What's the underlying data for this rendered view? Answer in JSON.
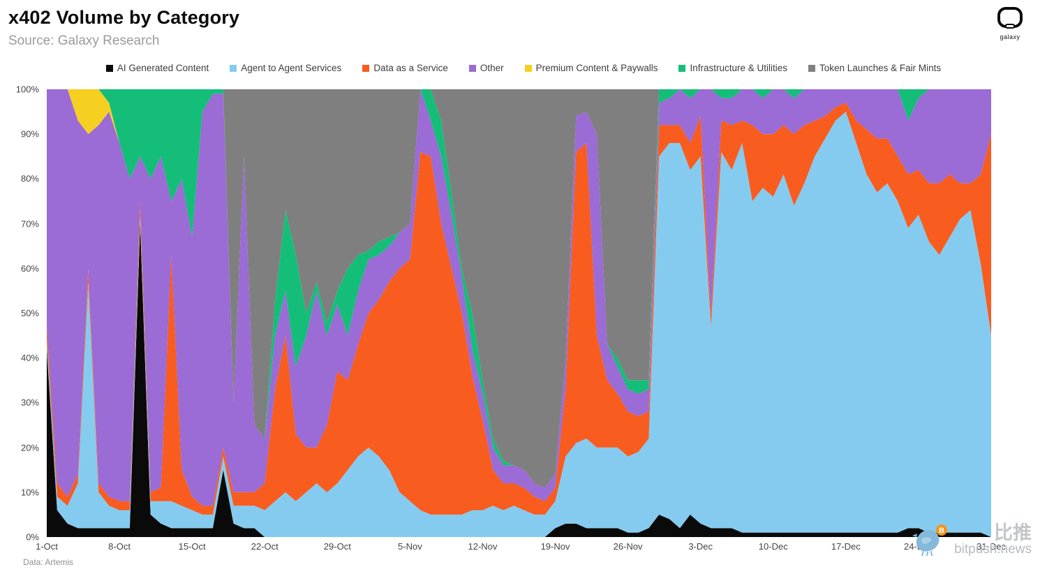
{
  "header": {
    "title": "x402 Volume by Category",
    "source": "Source: Galaxy Research",
    "logo_text": "galaxy"
  },
  "footer": {
    "label": "Data: Artemis"
  },
  "watermark": {
    "cn": "比推",
    "en": "bitpush.news"
  },
  "colors": {
    "ai": "#0a0a0a",
    "agent": "#85cbf0",
    "data_service": "#f85c1f",
    "other": "#9b6bd6",
    "premium": "#f5d021",
    "infra": "#14be78",
    "token": "#7f7f7f"
  },
  "chart_data": {
    "type": "area",
    "stacked": true,
    "normalized_percent": true,
    "title": "x402 Volume by Category",
    "xlabel": "",
    "ylabel": "",
    "ylim": [
      0,
      100
    ],
    "grid": false,
    "legend_position": "top",
    "y_ticks": [
      "0%",
      "10%",
      "20%",
      "30%",
      "40%",
      "50%",
      "60%",
      "70%",
      "80%",
      "90%",
      "100%"
    ],
    "x_ticks": [
      "1-Oct",
      "8-Oct",
      "15-Oct",
      "22-Oct",
      "29-Oct",
      "5-Nov",
      "12-Nov",
      "19-Nov",
      "26-Nov",
      "3-Dec",
      "10-Dec",
      "17-Dec",
      "24-Dec",
      "31-Dec"
    ],
    "x": [
      "1-Oct",
      "2-Oct",
      "3-Oct",
      "4-Oct",
      "5-Oct",
      "6-Oct",
      "7-Oct",
      "8-Oct",
      "9-Oct",
      "10-Oct",
      "11-Oct",
      "12-Oct",
      "13-Oct",
      "14-Oct",
      "15-Oct",
      "16-Oct",
      "17-Oct",
      "18-Oct",
      "19-Oct",
      "20-Oct",
      "21-Oct",
      "22-Oct",
      "23-Oct",
      "24-Oct",
      "25-Oct",
      "26-Oct",
      "27-Oct",
      "28-Oct",
      "29-Oct",
      "30-Oct",
      "31-Oct",
      "1-Nov",
      "2-Nov",
      "3-Nov",
      "4-Nov",
      "5-Nov",
      "6-Nov",
      "7-Nov",
      "8-Nov",
      "9-Nov",
      "10-Nov",
      "11-Nov",
      "12-Nov",
      "13-Nov",
      "14-Nov",
      "15-Nov",
      "16-Nov",
      "17-Nov",
      "18-Nov",
      "19-Nov",
      "20-Nov",
      "21-Nov",
      "22-Nov",
      "23-Nov",
      "24-Nov",
      "25-Nov",
      "26-Nov",
      "27-Nov",
      "28-Nov",
      "29-Nov",
      "30-Nov",
      "1-Dec",
      "2-Dec",
      "3-Dec",
      "4-Dec",
      "5-Dec",
      "6-Dec",
      "7-Dec",
      "8-Dec",
      "9-Dec",
      "10-Dec",
      "11-Dec",
      "12-Dec",
      "13-Dec",
      "14-Dec",
      "15-Dec",
      "16-Dec",
      "17-Dec",
      "18-Dec",
      "19-Dec",
      "20-Dec",
      "21-Dec",
      "22-Dec",
      "23-Dec",
      "24-Dec",
      "25-Dec",
      "26-Dec",
      "27-Dec",
      "28-Dec",
      "29-Dec",
      "30-Dec",
      "31-Dec"
    ],
    "series": [
      {
        "name": "AI Generated Content",
        "color": "#0a0a0a",
        "values": [
          42,
          6,
          3,
          2,
          2,
          2,
          2,
          2,
          2,
          70,
          5,
          3,
          2,
          2,
          2,
          2,
          2,
          15,
          3,
          2,
          2,
          0,
          0,
          0,
          0,
          0,
          0,
          0,
          0,
          0,
          0,
          0,
          0,
          0,
          0,
          0,
          0,
          0,
          0,
          0,
          0,
          0,
          0,
          0,
          0,
          0,
          0,
          0,
          0,
          2,
          3,
          3,
          2,
          2,
          2,
          2,
          1,
          1,
          2,
          5,
          4,
          2,
          5,
          3,
          2,
          2,
          2,
          1,
          1,
          1,
          1,
          1,
          1,
          1,
          1,
          1,
          1,
          1,
          1,
          1,
          1,
          1,
          1,
          2,
          2,
          1,
          1,
          1,
          1,
          1,
          1,
          0
        ]
      },
      {
        "name": "Agent to Agent Services",
        "color": "#85cbf0",
        "values": [
          2,
          3,
          4,
          10,
          55,
          8,
          5,
          4,
          4,
          2,
          3,
          5,
          6,
          5,
          4,
          3,
          3,
          3,
          4,
          5,
          5,
          6,
          8,
          10,
          8,
          10,
          12,
          10,
          12,
          15,
          18,
          20,
          18,
          15,
          10,
          8,
          6,
          5,
          5,
          5,
          5,
          6,
          6,
          7,
          6,
          7,
          6,
          5,
          5,
          6,
          15,
          18,
          20,
          18,
          18,
          18,
          17,
          18,
          20,
          80,
          84,
          86,
          77,
          82,
          45,
          84,
          80,
          87,
          74,
          77,
          75,
          80,
          73,
          78,
          84,
          88,
          92,
          94,
          87,
          80,
          76,
          78,
          74,
          67,
          70,
          65,
          62,
          66,
          70,
          72,
          60,
          45
        ]
      },
      {
        "name": "Data as a Service",
        "color": "#f85c1f",
        "values": [
          3,
          3,
          2,
          2,
          3,
          2,
          2,
          2,
          2,
          3,
          2,
          3,
          55,
          8,
          3,
          2,
          2,
          2,
          3,
          3,
          3,
          6,
          25,
          35,
          15,
          10,
          8,
          15,
          25,
          20,
          25,
          30,
          35,
          42,
          50,
          54,
          80,
          80,
          65,
          55,
          45,
          30,
          20,
          8,
          6,
          5,
          5,
          4,
          3,
          3,
          15,
          65,
          66,
          25,
          15,
          12,
          10,
          8,
          6,
          7,
          4,
          4,
          6,
          9,
          3,
          7,
          10,
          5,
          17,
          12,
          14,
          11,
          16,
          13,
          8,
          5,
          3,
          2,
          5,
          10,
          12,
          10,
          10,
          12,
          10,
          13,
          16,
          14,
          8,
          6,
          20,
          45
        ]
      },
      {
        "name": "Other",
        "color": "#9b6bd6",
        "values": [
          53,
          88,
          91,
          79,
          30,
          80,
          86,
          80,
          72,
          10,
          70,
          74,
          12,
          65,
          58,
          88,
          92,
          79,
          20,
          75,
          15,
          10,
          12,
          10,
          15,
          25,
          35,
          20,
          15,
          10,
          12,
          12,
          10,
          8,
          8,
          8,
          14,
          8,
          15,
          12,
          8,
          6,
          6,
          5,
          4,
          4,
          4,
          3,
          3,
          3,
          7,
          8,
          7,
          45,
          8,
          6,
          5,
          5,
          5,
          5,
          6,
          8,
          10,
          6,
          50,
          5,
          6,
          7,
          8,
          8,
          10,
          8,
          8,
          8,
          7,
          6,
          4,
          3,
          7,
          9,
          11,
          11,
          15,
          12,
          16,
          21,
          21,
          19,
          21,
          21,
          19,
          10
        ]
      },
      {
        "name": "Premium Content & Paywalls",
        "color": "#f5d021",
        "values": [
          0,
          0,
          0,
          7,
          10,
          8,
          2,
          0,
          0,
          0,
          0,
          0,
          0,
          0,
          0,
          0,
          0,
          0,
          0,
          0,
          0,
          0,
          0,
          0,
          0,
          0,
          0,
          0,
          0,
          0,
          0,
          0,
          0,
          0,
          0,
          0,
          0,
          0,
          0,
          0,
          0,
          0,
          0,
          0,
          0,
          0,
          0,
          0,
          0,
          0,
          0,
          0,
          0,
          0,
          0,
          0,
          0,
          0,
          0,
          0,
          0,
          0,
          0,
          0,
          0,
          0,
          0,
          0,
          0,
          0,
          0,
          0,
          0,
          0,
          0,
          0,
          0,
          0,
          0,
          0,
          0,
          0,
          0,
          0,
          0,
          0,
          0,
          0,
          0,
          0,
          0,
          0
        ]
      },
      {
        "name": "Infrastructure & Utilities",
        "color": "#14be78",
        "values": [
          0,
          0,
          0,
          0,
          0,
          0,
          3,
          12,
          20,
          15,
          20,
          15,
          25,
          20,
          33,
          5,
          1,
          1,
          0,
          0,
          0,
          0,
          8,
          18,
          25,
          5,
          2,
          3,
          3,
          15,
          8,
          2,
          3,
          2,
          0,
          0,
          0,
          7,
          8,
          5,
          2,
          8,
          3,
          2,
          1,
          0,
          0,
          0,
          0,
          0,
          0,
          0,
          0,
          0,
          0,
          2,
          2,
          3,
          2,
          3,
          2,
          0,
          2,
          0,
          0,
          2,
          2,
          0,
          0,
          2,
          0,
          0,
          2,
          0,
          0,
          0,
          0,
          0,
          0,
          0,
          0,
          0,
          0,
          7,
          2,
          0,
          0,
          0,
          0,
          0,
          0,
          0
        ]
      },
      {
        "name": "Token Launches & Fair Mints",
        "color": "#7f7f7f",
        "values": [
          0,
          0,
          0,
          0,
          0,
          0,
          0,
          0,
          0,
          0,
          0,
          0,
          0,
          0,
          0,
          0,
          0,
          0,
          70,
          15,
          75,
          78,
          47,
          27,
          37,
          50,
          43,
          52,
          45,
          40,
          37,
          36,
          34,
          33,
          32,
          30,
          0,
          0,
          7,
          23,
          40,
          50,
          65,
          78,
          83,
          84,
          85,
          88,
          89,
          86,
          60,
          6,
          5,
          10,
          57,
          60,
          65,
          65,
          65,
          0,
          0,
          0,
          0,
          0,
          0,
          0,
          0,
          0,
          0,
          0,
          0,
          0,
          0,
          0,
          0,
          0,
          0,
          0,
          0,
          0,
          0,
          0,
          0,
          0,
          0,
          0,
          0,
          0,
          0,
          0,
          0,
          0
        ]
      }
    ]
  }
}
